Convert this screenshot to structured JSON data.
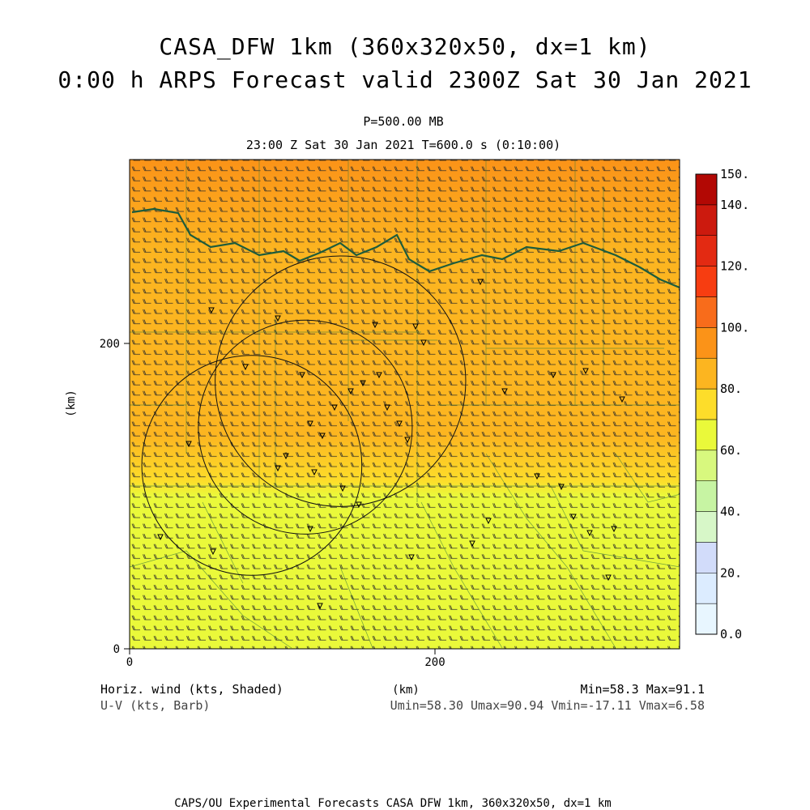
{
  "title": {
    "line1": "CASA_DFW 1km (360x320x50, dx=1 km)",
    "line2": "0:00 h ARPS Forecast valid 2300Z Sat 30 Jan 2021"
  },
  "subtitle": {
    "level": "P=500.00 MB",
    "time": "23:00 Z Sat 30 Jan 2021    T=600.0 s (0:10:00)"
  },
  "axes": {
    "x_ticks": [
      "0",
      "200"
    ],
    "y_ticks": [
      "0",
      "200"
    ],
    "x_label": "(km)",
    "y_label": "(km)",
    "x_range_km": [
      0,
      360
    ],
    "y_range_km": [
      0,
      320
    ]
  },
  "colorbar": {
    "labels": [
      "0.0",
      "20.",
      "40.",
      "60.",
      "80.",
      "100.",
      "120.",
      "140.",
      "150."
    ],
    "bins": [
      {
        "from": 0,
        "to": 10,
        "color": "#e8f6ff"
      },
      {
        "from": 10,
        "to": 20,
        "color": "#dcecff"
      },
      {
        "from": 20,
        "to": 30,
        "color": "#d2dcfa"
      },
      {
        "from": 30,
        "to": 40,
        "color": "#d7f7c8"
      },
      {
        "from": 40,
        "to": 50,
        "color": "#c7f4a3"
      },
      {
        "from": 50,
        "to": 60,
        "color": "#d8f87e"
      },
      {
        "from": 60,
        "to": 70,
        "color": "#eaf93a"
      },
      {
        "from": 70,
        "to": 80,
        "color": "#fddd2a"
      },
      {
        "from": 80,
        "to": 90,
        "color": "#fcb520"
      },
      {
        "from": 90,
        "to": 100,
        "color": "#fb9318"
      },
      {
        "from": 100,
        "to": 110,
        "color": "#f86c1b"
      },
      {
        "from": 110,
        "to": 120,
        "color": "#f73d11"
      },
      {
        "from": 120,
        "to": 130,
        "color": "#e32a12"
      },
      {
        "from": 130,
        "to": 140,
        "color": "#cc1a0e"
      },
      {
        "from": 140,
        "to": 150,
        "color": "#b20804"
      }
    ]
  },
  "field": {
    "variable": "Horizontal wind speed (kts)",
    "min": 58.3,
    "max": 91.1,
    "gradient_stops": [
      {
        "y_km": 0,
        "kts": 61
      },
      {
        "y_km": 60,
        "kts": 64
      },
      {
        "y_km": 100,
        "kts": 67
      },
      {
        "y_km": 110,
        "kts": 72
      },
      {
        "y_km": 140,
        "kts": 80
      },
      {
        "y_km": 200,
        "kts": 84
      },
      {
        "y_km": 260,
        "kts": 87
      },
      {
        "y_km": 320,
        "kts": 90
      }
    ]
  },
  "annotations": {
    "left1": "Horiz. wind (kts, Shaded)",
    "left2": "U-V (kts, Barb)",
    "center": "(km)",
    "right1": "Min=58.3 Max=91.1",
    "right2": "Umin=58.30 Umax=90.94 Vmin=-17.11 Vmax=6.58"
  },
  "radar_rings": [
    {
      "name": "ring-north",
      "x_km": 138,
      "y_km": 175,
      "r_km": 82
    },
    {
      "name": "ring-center",
      "x_km": 115,
      "y_km": 145,
      "r_km": 70
    },
    {
      "name": "ring-southwest",
      "x_km": 80,
      "y_km": 120,
      "r_km": 72
    }
  ],
  "footer": "CAPS/OU Experimental Forecasts  CASA DFW 1km, 360x320x50, dx=1 km"
}
